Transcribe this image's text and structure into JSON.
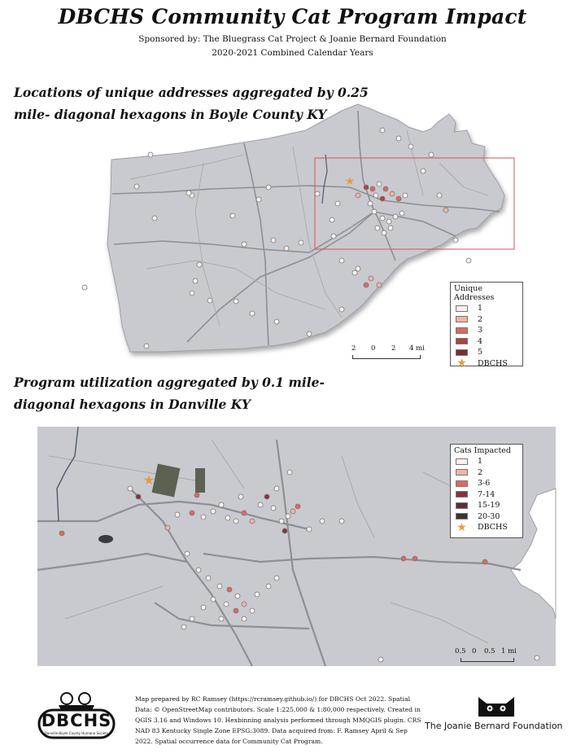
{
  "header": {
    "title": "DBCHS Community Cat Program Impact",
    "sponsor": "Sponsored by: The Bluegrass Cat Project & Joanie Bernard Foundation",
    "years": "2020-2021 Combined Calendar Years"
  },
  "map1": {
    "title_line1": "Locations of unique addresses aggregated by 0.25",
    "title_line2": "mile- diagonal hexagons in Boyle County KY",
    "legend": {
      "title": "Unique Addresses",
      "items": [
        {
          "label": "1",
          "color": "#fbf0ee"
        },
        {
          "label": "2",
          "color": "#f2b3a6"
        },
        {
          "label": "3",
          "color": "#e0675f"
        },
        {
          "label": "4",
          "color": "#a84646"
        },
        {
          "label": "5",
          "color": "#7a2e2e"
        }
      ],
      "star_label": "DBCHS"
    },
    "scale_labels": [
      "2",
      "0",
      "2",
      "4 mi"
    ]
  },
  "map2": {
    "title_line1": "Program utilization aggregated by 0.1 mile-",
    "title_line2": "diagonal hexagons in Danville KY",
    "legend": {
      "title": "Cats Impacted",
      "items": [
        {
          "label": "1",
          "color": "#fbf0ee"
        },
        {
          "label": "2",
          "color": "#f2b3a6"
        },
        {
          "label": "3-6",
          "color": "#e0675f"
        },
        {
          "label": "7-14",
          "color": "#8c2f3a"
        },
        {
          "label": "15-19",
          "color": "#5c3036"
        },
        {
          "label": "20-30",
          "color": "#3a3436"
        }
      ],
      "star_label": "DBCHS"
    },
    "scale_labels": [
      "0.5",
      "0",
      "0.5",
      "1 mi"
    ]
  },
  "footer": {
    "logo_text": "DBCHS",
    "logo_subtext": "Danville-Boyle County Humane Society",
    "credits": "Map prepared by RC Ramsey (https://rcramsey.github.io/) for DBCHS Oct 2022. Spatial Data: © OpenStreetMap contributors.  Scale 1:225,000 & 1:80,000 respectively. Created in QGIS 3.16 and Windows 10. Hexbinning analysis performed through MMQGIS plugin. CRS NAD 83 Kentucky Single Zone EPSG:3089. Data acquired from: F. Ramsey April & Sep 2022. Spatial occurrence data for Community Cat Program.",
    "foundation": "The Joanie Bernard Foundation"
  },
  "colors": {
    "land": "#c9cacf",
    "road": "#8c9096",
    "water": "#4a5a72",
    "extent_box": "#d9534f",
    "star": "#e89b3c"
  }
}
